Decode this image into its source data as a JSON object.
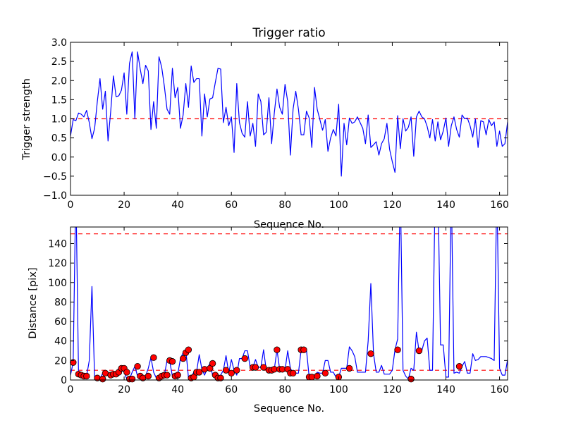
{
  "chart_data": [
    {
      "type": "line",
      "title": "Trigger ratio",
      "xlabel": "Sequence No.",
      "ylabel": "Trigger strength",
      "xlim": [
        0,
        163
      ],
      "ylim": [
        -1.0,
        3.0
      ],
      "xticks": [
        0,
        20,
        40,
        60,
        80,
        100,
        120,
        140,
        160
      ],
      "xtick_labels": [
        "0",
        "20",
        "40",
        "60",
        "80",
        "100",
        "120",
        "140",
        "160"
      ],
      "yticks": [
        -1.0,
        -0.5,
        0.0,
        0.5,
        1.0,
        1.5,
        2.0,
        2.5,
        3.0
      ],
      "ytick_labels": [
        "−1.0",
        "−0.5",
        "0.0",
        "0.5",
        "1.0",
        "1.5",
        "2.0",
        "2.5",
        "3.0"
      ],
      "threshold": 1.0,
      "line_color": "#0000ff",
      "threshold_color": "#ff0000",
      "series": [
        {
          "name": "Trigger strength",
          "values": [
            0.55,
            0.98,
            0.95,
            1.15,
            1.12,
            1.05,
            1.22,
            0.9,
            0.48,
            0.75,
            1.45,
            2.05,
            1.25,
            1.72,
            0.42,
            1.2,
            2.12,
            1.58,
            1.6,
            1.75,
            2.2,
            1.12,
            2.45,
            2.75,
            1.0,
            2.75,
            2.3,
            1.92,
            2.4,
            2.25,
            0.72,
            1.45,
            0.75,
            2.62,
            2.35,
            1.85,
            1.25,
            1.12,
            2.32,
            1.55,
            1.82,
            0.75,
            1.1,
            1.92,
            1.3,
            2.38,
            1.95,
            2.05,
            2.05,
            0.55,
            1.65,
            1.05,
            1.52,
            1.55,
            1.95,
            2.32,
            2.3,
            0.9,
            1.3,
            0.82,
            1.05,
            0.12,
            1.92,
            0.9,
            0.62,
            0.52,
            1.45,
            0.55,
            0.88,
            0.28,
            1.65,
            1.45,
            0.58,
            0.65,
            1.55,
            0.35,
            1.15,
            1.78,
            1.3,
            1.12,
            1.9,
            1.45,
            0.05,
            1.25,
            1.72,
            1.25,
            0.58,
            0.58,
            1.2,
            1.02,
            0.25,
            1.82,
            1.25,
            0.98,
            0.7,
            0.98,
            0.15,
            0.5,
            0.72,
            0.55,
            1.38,
            -0.5,
            0.88,
            0.32,
            1.02,
            0.88,
            0.92,
            1.05,
            0.9,
            0.75,
            0.35,
            1.1,
            0.25,
            0.32,
            0.4,
            0.05,
            0.35,
            0.48,
            0.88,
            0.2,
            -0.12,
            -0.4,
            1.08,
            0.22,
            1.0,
            0.68,
            0.78,
            1.05,
            0.02,
            1.05,
            1.2,
            1.05,
            1.0,
            0.8,
            0.5,
            0.98,
            0.42,
            0.92,
            0.45,
            0.68,
            1.02,
            0.28,
            0.82,
            1.05,
            0.72,
            0.52,
            1.1,
            1.0,
            1.02,
            0.82,
            0.52,
            1.0,
            0.25,
            0.95,
            0.92,
            0.58,
            0.98,
            0.82,
            0.92,
            0.28,
            0.68,
            0.28,
            0.35,
            0.92
          ]
        }
      ]
    },
    {
      "type": "line",
      "title": "",
      "xlabel": "Sequence No.",
      "ylabel": "Distance [pix]",
      "xlim": [
        0,
        163
      ],
      "ylim": [
        0,
        157
      ],
      "xticks": [
        0,
        20,
        40,
        60,
        80,
        100,
        120,
        140,
        160
      ],
      "xtick_labels": [
        "0",
        "20",
        "40",
        "60",
        "80",
        "100",
        "120",
        "140",
        "160"
      ],
      "yticks": [
        0,
        20,
        40,
        60,
        80,
        100,
        120,
        140
      ],
      "ytick_labels": [
        "0",
        "20",
        "40",
        "60",
        "80",
        "100",
        "120",
        "140"
      ],
      "thresholds": [
        150,
        10
      ],
      "line_color": "#0000ff",
      "threshold_color": "#ff0000",
      "marker_color": "#ff0000",
      "series": [
        {
          "name": "Distance",
          "values": [
            5,
            18,
            200,
            6,
            5,
            4,
            4,
            20,
            96,
            2,
            2,
            1,
            7,
            7,
            5,
            5,
            6,
            8,
            12,
            12,
            8,
            1,
            1,
            8,
            14,
            4,
            2,
            4,
            4,
            12,
            23,
            8,
            2,
            4,
            5,
            5,
            20,
            19,
            4,
            5,
            6,
            22,
            28,
            31,
            2,
            3,
            8,
            8,
            26,
            11,
            5,
            12,
            17,
            5,
            2,
            2,
            5,
            10,
            25,
            7,
            21,
            10,
            5,
            22,
            22,
            30,
            30,
            13,
            13,
            21,
            13,
            13,
            31,
            10,
            10,
            11,
            11,
            31,
            11,
            11,
            10,
            30,
            12,
            7,
            7,
            7,
            31,
            31,
            31,
            3,
            3,
            4,
            8,
            7,
            7,
            20,
            20,
            8,
            8,
            3,
            3,
            12,
            12,
            12,
            34,
            30,
            24,
            8,
            8,
            8,
            8,
            40,
            99,
            27,
            8,
            8,
            15,
            6,
            6,
            6,
            10,
            31,
            42,
            200,
            10,
            4,
            1,
            12,
            10,
            49,
            29,
            30,
            40,
            43,
            10,
            10,
            200,
            200,
            36,
            36,
            3,
            3,
            200,
            7,
            8,
            7,
            14,
            19,
            7,
            7,
            27,
            20,
            21,
            24,
            24,
            24,
            23,
            22,
            20,
            200,
            12,
            5,
            5,
            21
          ],
          "markers": [
            [
              1,
              18
            ],
            [
              3,
              6
            ],
            [
              4,
              5
            ],
            [
              5,
              4
            ],
            [
              6,
              4
            ],
            [
              10,
              2
            ],
            [
              12,
              1
            ],
            [
              13,
              7
            ],
            [
              15,
              5
            ],
            [
              16,
              6
            ],
            [
              17,
              6
            ],
            [
              18,
              8
            ],
            [
              19,
              12
            ],
            [
              20,
              12
            ],
            [
              21,
              8
            ],
            [
              22,
              1
            ],
            [
              23,
              1
            ],
            [
              25,
              14
            ],
            [
              26,
              4
            ],
            [
              27,
              2
            ],
            [
              29,
              4
            ],
            [
              31,
              23
            ],
            [
              33,
              2
            ],
            [
              34,
              4
            ],
            [
              35,
              5
            ],
            [
              36,
              5
            ],
            [
              37,
              20
            ],
            [
              38,
              19
            ],
            [
              39,
              4
            ],
            [
              40,
              5
            ],
            [
              42,
              22
            ],
            [
              43,
              28
            ],
            [
              44,
              31
            ],
            [
              45,
              2
            ],
            [
              46,
              3
            ],
            [
              47,
              8
            ],
            [
              48,
              8
            ],
            [
              50,
              11
            ],
            [
              52,
              12
            ],
            [
              53,
              17
            ],
            [
              54,
              5
            ],
            [
              55,
              2
            ],
            [
              56,
              2
            ],
            [
              58,
              10
            ],
            [
              60,
              7
            ],
            [
              62,
              10
            ],
            [
              65,
              22
            ],
            [
              68,
              13
            ],
            [
              69,
              13
            ],
            [
              72,
              13
            ],
            [
              74,
              10
            ],
            [
              75,
              10
            ],
            [
              76,
              11
            ],
            [
              77,
              31
            ],
            [
              78,
              11
            ],
            [
              79,
              11
            ],
            [
              81,
              11
            ],
            [
              82,
              7
            ],
            [
              83,
              7
            ],
            [
              86,
              31
            ],
            [
              87,
              31
            ],
            [
              89,
              3
            ],
            [
              90,
              3
            ],
            [
              92,
              4
            ],
            [
              95,
              7
            ],
            [
              100,
              3
            ],
            [
              104,
              12
            ],
            [
              112,
              27
            ],
            [
              122,
              31
            ],
            [
              127,
              1
            ],
            [
              130,
              30
            ],
            [
              145,
              14
            ]
          ]
        }
      ]
    }
  ]
}
